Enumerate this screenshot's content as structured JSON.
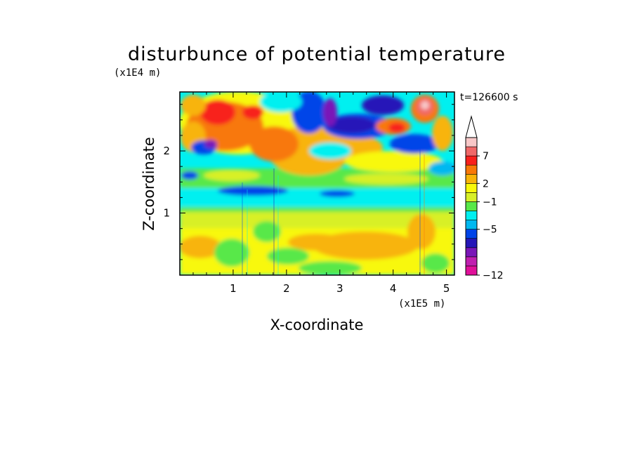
{
  "chart_data": {
    "type": "heatmap",
    "title": "disturbunce of potential temperature",
    "xlabel": "X-coordinate",
    "ylabel": "Z-coordinate",
    "x_scale_label": "(x1E5 m)",
    "y_scale_label": "(x1E4 m)",
    "time_label": "t=126600 s",
    "xlim": [
      0,
      5.15
    ],
    "ylim": [
      0,
      2.95
    ],
    "x_ticks": [
      "1",
      "2",
      "3",
      "4",
      "5"
    ],
    "x_tick_values": [
      1,
      2,
      3,
      4,
      5
    ],
    "y_ticks": [
      "1",
      "2"
    ],
    "y_tick_values": [
      1,
      2
    ],
    "colorbar": {
      "tick_labels": [
        "7",
        "2",
        "−1",
        "−5",
        "−12"
      ],
      "colors": [
        "#e0109a",
        "#c01fb0",
        "#7a16b8",
        "#2516b8",
        "#0044e8",
        "#00b8f0",
        "#00f0f0",
        "#58e848",
        "#d8f028",
        "#f8f808",
        "#f8b408",
        "#f87808",
        "#f8201c",
        "#f06868",
        "#f8c8c8"
      ],
      "top_extension_color": "#ffffff"
    }
  }
}
